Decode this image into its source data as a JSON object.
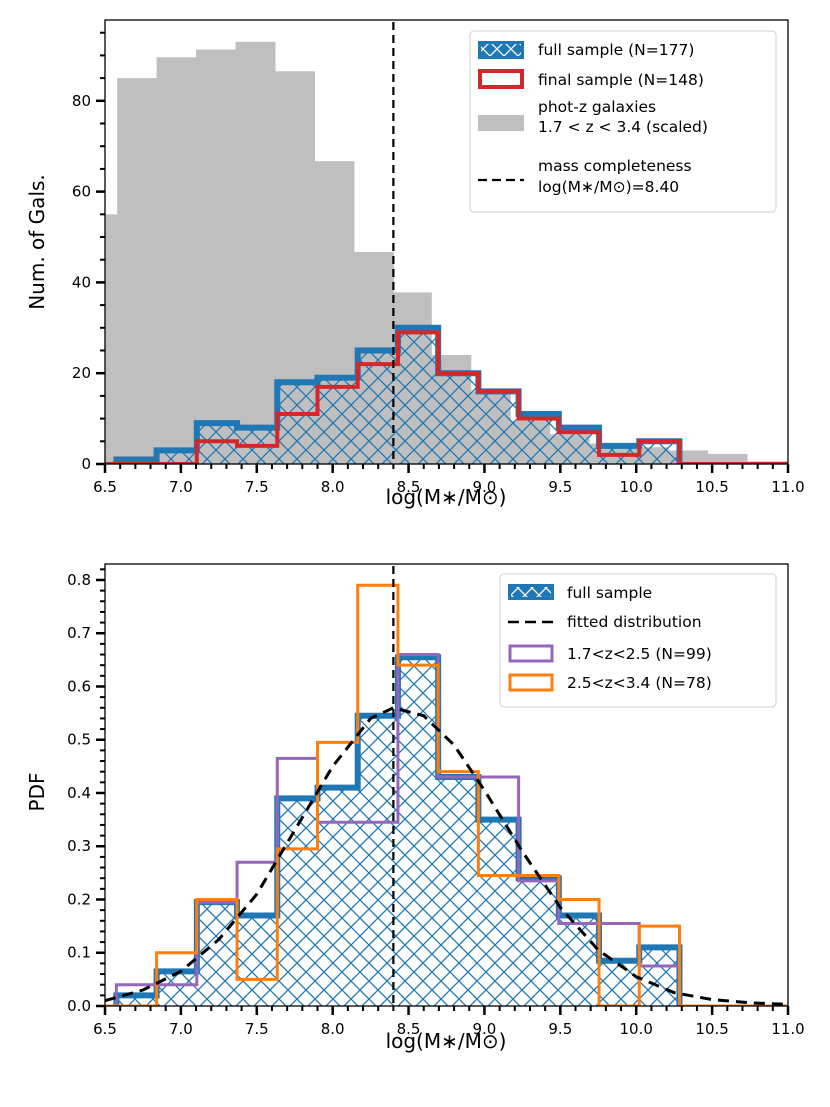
{
  "colors": {
    "full": "#1f77b4",
    "final": "#d62728",
    "photz": "#bfbfbf",
    "low_z": "#9467bd",
    "high_z": "#ff7f0e",
    "line": "#000000"
  },
  "chart_data": [
    {
      "type": "bar",
      "panel": "top",
      "xlabel": "log(M∗/M⊙)",
      "ylabel": "Num. of Gals.",
      "xlim": [
        6.5,
        11.0
      ],
      "ylim": [
        0,
        97.8
      ],
      "xticks": [
        "6.5",
        "7.0",
        "7.5",
        "8.0",
        "8.5",
        "9.0",
        "9.5",
        "10.0",
        "10.5",
        "11.0"
      ],
      "yticks": [
        "0",
        "20",
        "40",
        "60",
        "80"
      ],
      "vline": 8.4,
      "legend_position": "top-right",
      "legend": [
        "full sample (N=177)",
        "final sample (N=148)",
        "phot-z galaxies",
        "1.7 < z < 3.4 (scaled)",
        "mass completeness",
        "log(M∗/M⊙)=8.40"
      ],
      "bin_edges": [
        6.575,
        6.84,
        7.105,
        7.37,
        7.635,
        7.9,
        8.165,
        8.43,
        8.695,
        8.96,
        9.225,
        9.49,
        9.755,
        10.02,
        10.285
      ],
      "series": [
        {
          "name": "full sample (N=177)",
          "style": "step-hatched",
          "values": [
            1,
            3,
            9,
            8,
            18,
            19,
            25,
            30,
            20,
            16,
            11,
            8,
            4,
            5
          ]
        },
        {
          "name": "final sample (N=148)",
          "style": "step",
          "values": [
            0,
            0,
            5,
            4,
            11,
            17,
            22,
            29,
            20,
            16,
            10,
            7,
            2,
            5
          ]
        },
        {
          "name": "phot-z galaxies 1.7 < z < 3.4 (scaled)",
          "style": "filled",
          "bin_edges": [
            6.5,
            6.58,
            6.84,
            7.1,
            7.36,
            7.62,
            7.88,
            8.14,
            8.4,
            8.65,
            8.91,
            9.17,
            9.43,
            9.69,
            9.95,
            10.21,
            10.47,
            10.73,
            11.0
          ],
          "values": [
            55,
            85,
            89.6,
            91.3,
            93,
            86.5,
            66.7,
            46.7,
            37.8,
            24,
            16,
            9.5,
            6.5,
            4.5,
            3.7,
            3,
            2.2,
            0.6
          ]
        }
      ]
    },
    {
      "type": "bar",
      "panel": "bottom",
      "xlabel": "log(M∗/M⊙)",
      "ylabel": "PDF",
      "xlim": [
        6.5,
        11.0
      ],
      "ylim": [
        0,
        0.83
      ],
      "xticks": [
        "6.5",
        "7.0",
        "7.5",
        "8.0",
        "8.5",
        "9.0",
        "9.5",
        "10.0",
        "10.5",
        "11.0"
      ],
      "yticks": [
        "0.0",
        "0.1",
        "0.2",
        "0.3",
        "0.4",
        "0.5",
        "0.6",
        "0.7",
        "0.8"
      ],
      "vline": 8.4,
      "legend_position": "top-right",
      "legend": [
        "full sample",
        "fitted distribution",
        "1.7<z<2.5  (N=99)",
        "2.5<z<3.4 (N=78)"
      ],
      "bin_edges": [
        6.575,
        6.84,
        7.105,
        7.37,
        7.635,
        7.9,
        8.165,
        8.43,
        8.695,
        8.96,
        9.225,
        9.49,
        9.755,
        10.02,
        10.285
      ],
      "series": [
        {
          "name": "full sample",
          "style": "step-hatched",
          "values": [
            0.02,
            0.065,
            0.195,
            0.17,
            0.39,
            0.41,
            0.545,
            0.655,
            0.43,
            0.35,
            0.24,
            0.17,
            0.085,
            0.11
          ]
        },
        {
          "name": "1.7<z<2.5  (N=99)",
          "style": "step",
          "values": [
            0.04,
            0.04,
            0.195,
            0.27,
            0.465,
            0.345,
            0.345,
            0.66,
            0.43,
            0.43,
            0.235,
            0.155,
            0.155,
            0.075
          ]
        },
        {
          "name": "2.5<z<3.4 (N=78)",
          "style": "step",
          "values": [
            0.0,
            0.1,
            0.2,
            0.05,
            0.295,
            0.495,
            0.79,
            0.64,
            0.44,
            0.245,
            0.245,
            0.2,
            0.0,
            0.15
          ]
        },
        {
          "name": "fitted distribution",
          "style": "dashed-curve",
          "model": "skew-normal-like",
          "peak_x": 8.4,
          "peak_y": 0.56,
          "x": [
            6.5,
            6.75,
            7.0,
            7.25,
            7.5,
            7.75,
            8.0,
            8.25,
            8.4,
            8.6,
            8.8,
            9.0,
            9.25,
            9.5,
            9.75,
            10.0,
            10.25,
            10.5,
            10.75,
            11.0
          ],
          "y": [
            0.01,
            0.03,
            0.065,
            0.125,
            0.21,
            0.33,
            0.45,
            0.54,
            0.56,
            0.545,
            0.49,
            0.405,
            0.29,
            0.185,
            0.105,
            0.055,
            0.025,
            0.012,
            0.006,
            0.003
          ]
        }
      ]
    }
  ]
}
